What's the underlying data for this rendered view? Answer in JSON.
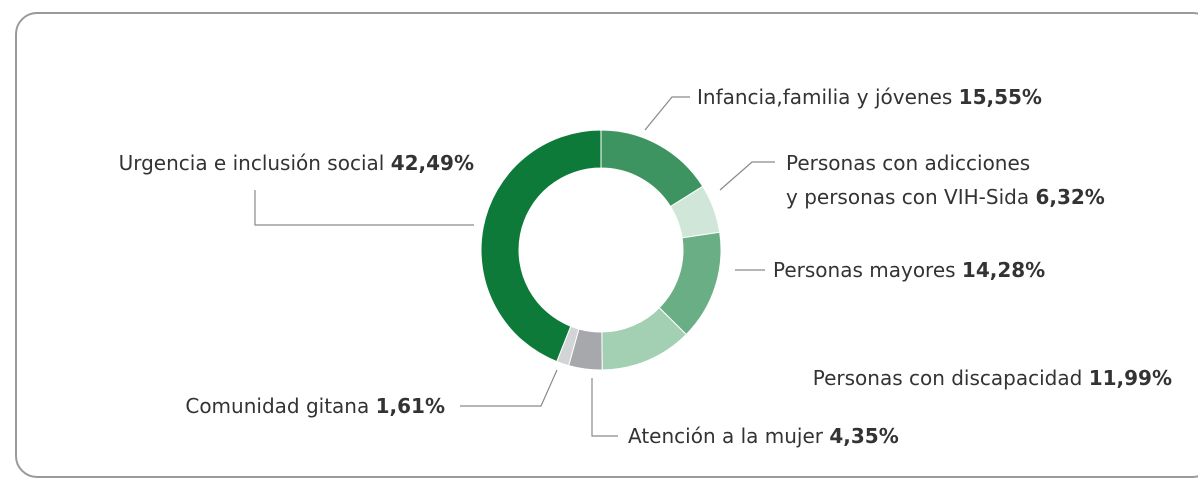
{
  "chart_data": {
    "type": "donut",
    "categories": [
      "Infancia,familia y jóvenes",
      "Personas con adicciones\ny personas con VIH-Sida",
      "Personas mayores",
      "Personas con discapacidad",
      "Atención a la mujer",
      "Comunidad gitana",
      "Urgencia e inclusión social"
    ],
    "values": [
      15.55,
      6.32,
      14.28,
      11.99,
      4.35,
      1.61,
      42.49
    ],
    "value_labels": [
      "15,55%",
      "6,32%",
      "14,28%",
      "11,99%",
      "4,35%",
      "1,61%",
      "42,49%"
    ],
    "colors": [
      "#3d9460",
      "#cfe6d8",
      "#6aae86",
      "#a3cfb2",
      "#a6a8ab",
      "#d3d4d6",
      "#0e7a3a"
    ]
  }
}
